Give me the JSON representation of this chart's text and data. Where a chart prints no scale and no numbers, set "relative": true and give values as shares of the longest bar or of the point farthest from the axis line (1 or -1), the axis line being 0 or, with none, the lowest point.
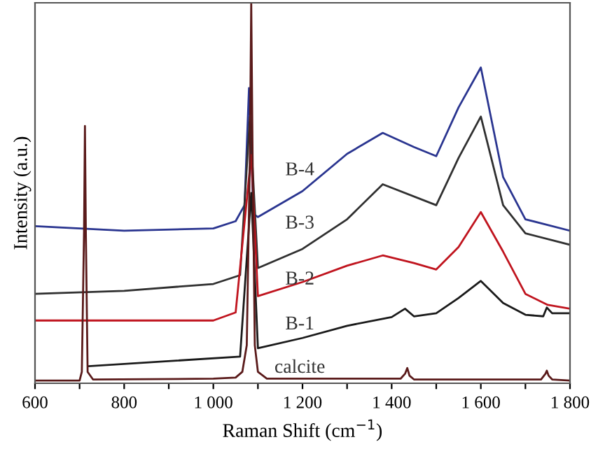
{
  "chart_data": {
    "type": "line",
    "relative": true,
    "xlabel": "Raman Shift (cm$^{−1}$)",
    "ylabel": "Intensity (a.u.)",
    "xlim": [
      600,
      1800
    ],
    "xticks": [
      600,
      {
        "value": 700,
        "label": null
      },
      800,
      {
        "value": 900,
        "label": null
      },
      {
        "value": 1000,
        "label": "1 000"
      },
      {
        "value": 1100,
        "label": null
      },
      {
        "value": 1200,
        "label": "1 200"
      },
      {
        "value": 1300,
        "label": null
      },
      {
        "value": 1400,
        "label": "1 400"
      },
      {
        "value": 1500,
        "label": null
      },
      {
        "value": 1600,
        "label": "1 600"
      },
      {
        "value": 1700,
        "label": null
      },
      {
        "value": 1800,
        "label": "1 800"
      }
    ],
    "grid": false,
    "legend": false,
    "series": [
      {
        "name": "B-4",
        "color": "#2a3590",
        "x": [
          600,
          800,
          1000,
          1050,
          1070,
          1080,
          1090,
          1100,
          1200,
          1300,
          1380,
          1450,
          1500,
          1550,
          1600,
          1650,
          1700,
          1800
        ],
        "values": [
          0.413,
          0.401,
          0.407,
          0.426,
          0.468,
          0.776,
          0.445,
          0.437,
          0.505,
          0.603,
          0.658,
          0.621,
          0.597,
          0.725,
          0.83,
          0.542,
          0.431,
          0.401
        ]
      },
      {
        "name": "B-3",
        "color": "#303030",
        "x": [
          600,
          800,
          1000,
          1060,
          1082,
          1100,
          1200,
          1300,
          1380,
          1500,
          1550,
          1600,
          1650,
          1700,
          1800
        ],
        "values": [
          0.235,
          0.243,
          0.261,
          0.284,
          0.7,
          0.303,
          0.353,
          0.431,
          0.523,
          0.468,
          0.592,
          0.701,
          0.468,
          0.394,
          0.364
        ]
      },
      {
        "name": "B-2",
        "color": "#c0141e",
        "x": [
          600,
          1000,
          1050,
          1085,
          1100,
          1200,
          1300,
          1380,
          1450,
          1500,
          1550,
          1600,
          1650,
          1700,
          1750,
          1800
        ],
        "values": [
          0.165,
          0.165,
          0.186,
          0.6,
          0.229,
          0.266,
          0.309,
          0.336,
          0.316,
          0.299,
          0.358,
          0.45,
          0.346,
          0.235,
          0.206,
          0.196
        ]
      },
      {
        "name": "B-1",
        "color": "#1a1a1a",
        "x": [
          720,
          1060,
          1085,
          1100,
          1200,
          1300,
          1400,
          1430,
          1450,
          1500,
          1550,
          1600,
          1650,
          1700,
          1740,
          1748,
          1760,
          1800
        ],
        "values": [
          0.045,
          0.07,
          0.5,
          0.092,
          0.119,
          0.151,
          0.174,
          0.196,
          0.176,
          0.184,
          0.224,
          0.269,
          0.211,
          0.18,
          0.176,
          0.199,
          0.184,
          0.184
        ]
      },
      {
        "name": "calcite",
        "color": "#5a1a1a",
        "x": [
          600,
          700,
          705,
          710,
          712,
          714,
          718,
          730,
          1000,
          1050,
          1065,
          1075,
          1082,
          1085,
          1088,
          1093,
          1100,
          1120,
          1420,
          1430,
          1435,
          1440,
          1450,
          1735,
          1745,
          1748,
          1752,
          1760,
          1800
        ],
        "values": [
          0.007,
          0.007,
          0.03,
          0.4,
          0.676,
          0.4,
          0.03,
          0.01,
          0.012,
          0.015,
          0.03,
          0.1,
          0.6,
          1.0,
          0.6,
          0.1,
          0.03,
          0.012,
          0.012,
          0.025,
          0.04,
          0.02,
          0.01,
          0.01,
          0.025,
          0.033,
          0.02,
          0.01,
          0.007
        ]
      }
    ]
  }
}
